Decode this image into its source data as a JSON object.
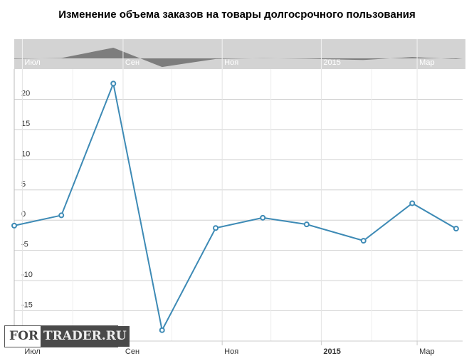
{
  "chart_data": {
    "type": "line",
    "title": "Изменение объема заказов на товары долгосрочного пользования",
    "xlabel": "",
    "ylabel": "",
    "x": [
      "2014-06-26",
      "2014-07-25",
      "2014-08-26",
      "2014-09-25",
      "2014-10-28",
      "2014-11-26",
      "2014-12-23",
      "2015-01-27",
      "2015-02-26",
      "2015-03-25"
    ],
    "values": [
      -0.9,
      0.8,
      22.6,
      -18.2,
      -1.3,
      0.4,
      -0.7,
      -3.4,
      2.8,
      -1.4
    ],
    "ylim": [
      -20,
      25
    ],
    "xlim": [
      "2014-06-26",
      "2015-03-29"
    ],
    "yticks": [
      20,
      15,
      10,
      5,
      0,
      -5,
      -10,
      -15
    ],
    "xticks": [
      {
        "date": "2014-07-01",
        "label": "Июл",
        "bold": false
      },
      {
        "date": "2014-09-01",
        "label": "Сен",
        "bold": false
      },
      {
        "date": "2014-11-01",
        "label": "Ноя",
        "bold": false
      },
      {
        "date": "2015-01-01",
        "label": "2015",
        "bold": true
      },
      {
        "date": "2015-03-01",
        "label": "Мар",
        "bold": false
      }
    ],
    "minor_grid": [
      "2014-08-01",
      "2014-10-01",
      "2014-12-01",
      "2015-02-01"
    ],
    "grid": true,
    "navigator": true,
    "line_color": "#3d8ab5"
  },
  "watermark": {
    "left": "FOR",
    "right": "TRADER.RU"
  }
}
